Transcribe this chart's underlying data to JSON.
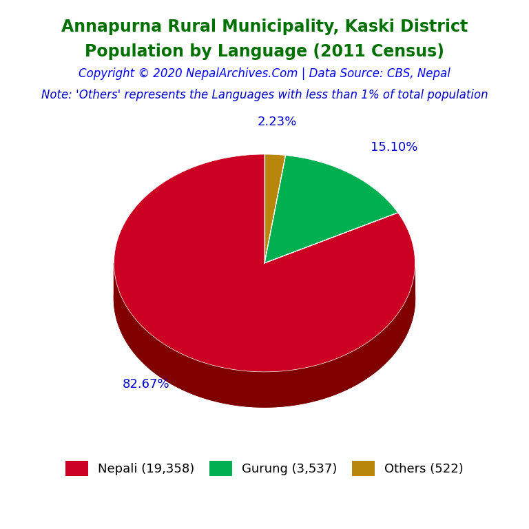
{
  "title_line1": "Annapurna Rural Municipality, Kaski District",
  "title_line2": "Population by Language (2011 Census)",
  "title_color": "#007000",
  "copyright_text": "Copyright © 2020 NepalArchives.Com | Data Source: CBS, Nepal",
  "copyright_color": "#0000FF",
  "note_text": "Note: 'Others' represents the Languages with less than 1% of total population",
  "note_color": "#0000CC",
  "labels": [
    "Nepali (19,358)",
    "Gurung (3,537)",
    "Others (522)"
  ],
  "values": [
    19358,
    3537,
    522
  ],
  "percentages": [
    82.67,
    15.1,
    2.23
  ],
  "colors": [
    "#CC0022",
    "#00B050",
    "#B8860B"
  ],
  "side_colors": [
    "#800000",
    "#005000",
    "#7A5800"
  ],
  "background_color": "#FFFFFF",
  "legend_fontsize": 13,
  "title_fontsize": 17,
  "copyright_fontsize": 12,
  "note_fontsize": 12,
  "label_color": "#0000CC",
  "label_fontsize": 13
}
